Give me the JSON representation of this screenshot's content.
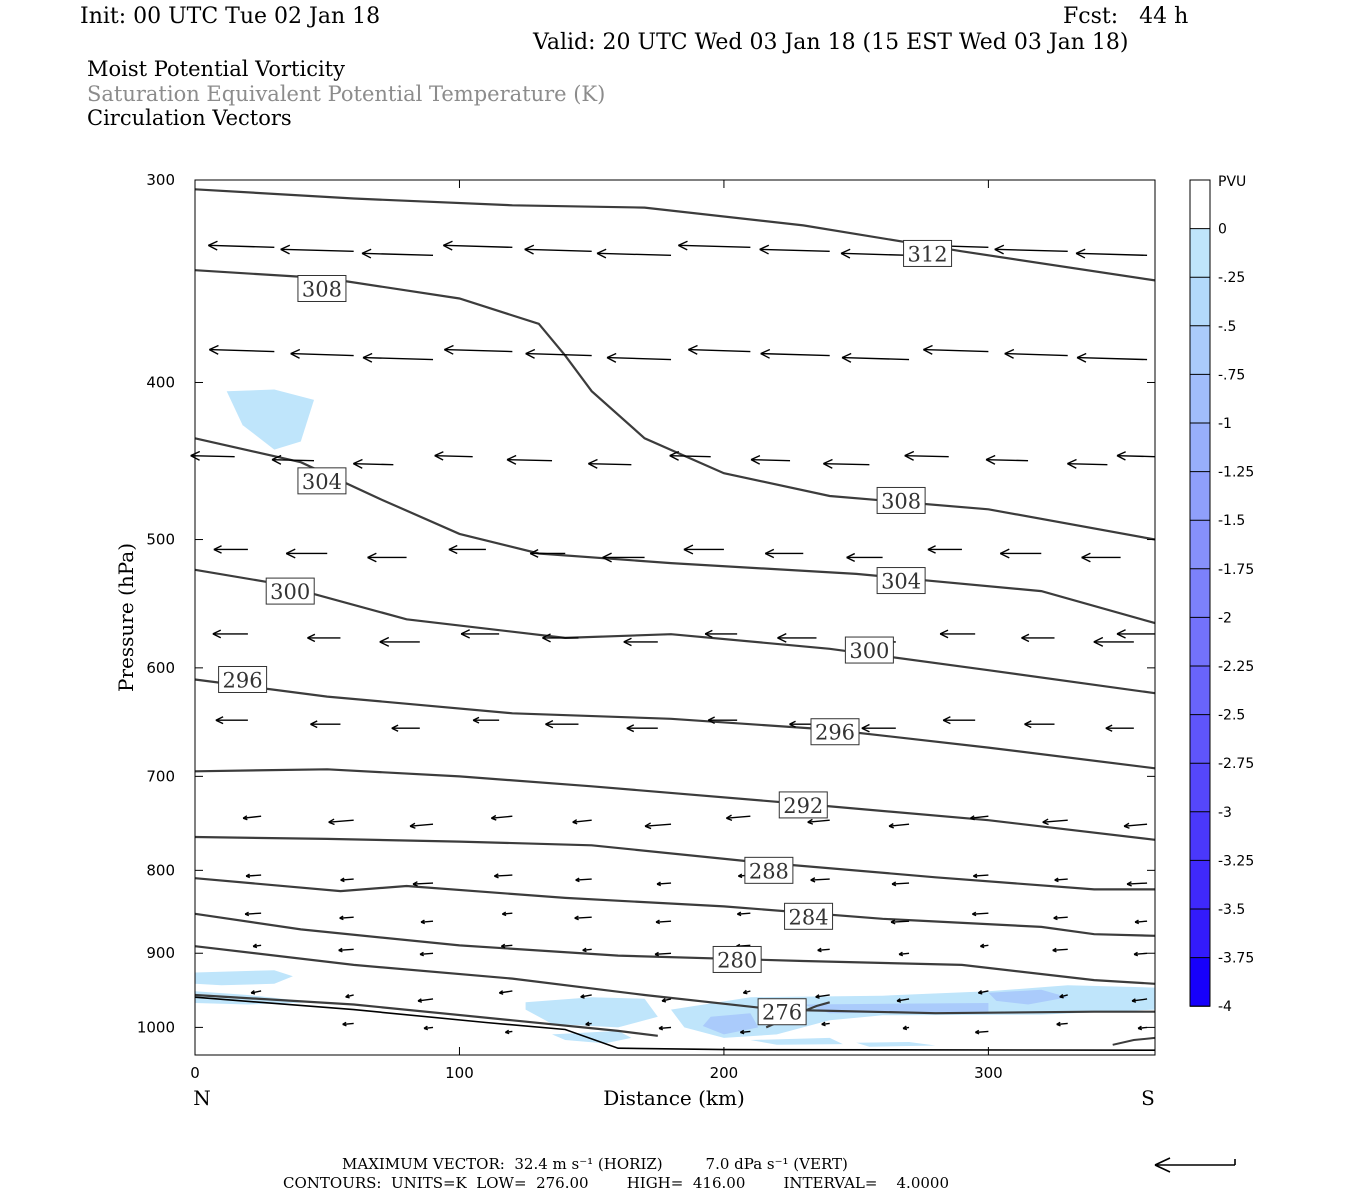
{
  "header": {
    "init": "Init: 00 UTC Tue 02 Jan 18",
    "fcst": "Fcst:   44 h",
    "valid": "Valid: 20 UTC Wed 03 Jan 18 (15 EST Wed 03 Jan 18)"
  },
  "titles": {
    "line1": "Moist Potential Vorticity",
    "line2": "Saturation Equivalent Potential Temperature (K)",
    "line3": "Circulation Vectors"
  },
  "footer": {
    "max_vector": "MAXIMUM VECTOR:  32.4 m s⁻¹ (HORIZ)         7.0 dPa s⁻¹ (VERT)",
    "contours": "CONTOURS:  UNITS=K  LOW=  276.00        HIGH=  416.00        INTERVAL=    4.0000"
  },
  "chart_data": {
    "type": "cross-section",
    "xlabel": "Distance (km)",
    "ylabel": "Pressure (hPa)",
    "xlim": [
      0,
      363
    ],
    "ylim": [
      1040,
      300
    ],
    "y_scale": "log-pressure",
    "x_ticks": [
      0,
      100,
      200,
      300
    ],
    "y_ticks": [
      300,
      400,
      500,
      600,
      700,
      800,
      900,
      1000
    ],
    "left_end_label": "N",
    "right_end_label": "S",
    "colorbar": {
      "unit": "PVU",
      "labels": [
        "0",
        "-.25",
        "-.5",
        "-.75",
        "-1",
        "-1.25",
        "-1.5",
        "-1.75",
        "-2",
        "-2.25",
        "-2.5",
        "-2.75",
        "-3",
        "-3.25",
        "-3.5",
        "-3.75",
        "-4"
      ],
      "colors": [
        "#ffffff",
        "#bfe5fb",
        "#b3d9fb",
        "#aacbfb",
        "#a1bdfb",
        "#98affb",
        "#8f9ffb",
        "#8690fb",
        "#7c81fb",
        "#7372fb",
        "#6964fb",
        "#5f55fb",
        "#5547fb",
        "#4a38fb",
        "#3f29fb",
        "#331bfb",
        "#1700fb"
      ]
    },
    "contours": [
      {
        "level": 312,
        "label": "312",
        "label_at": [
          277,
          333
        ],
        "points": [
          [
            0,
            304
          ],
          [
            60,
            308
          ],
          [
            120,
            311
          ],
          [
            170,
            312
          ],
          [
            230,
            320
          ],
          [
            290,
            332
          ],
          [
            363,
            346
          ]
        ]
      },
      {
        "level": 308,
        "label": "308",
        "label_at": [
          48,
          350
        ],
        "points": [
          [
            0,
            341
          ],
          [
            50,
            345
          ],
          [
            100,
            355
          ],
          [
            130,
            368
          ],
          [
            140,
            385
          ],
          [
            150,
            405
          ],
          [
            170,
            433
          ],
          [
            200,
            455
          ],
          [
            240,
            470
          ],
          [
            300,
            479
          ],
          [
            363,
            500
          ]
        ]
      },
      {
        "level": 308,
        "label": "308",
        "label_at": [
          267,
          473
        ],
        "points": []
      },
      {
        "level": 304,
        "label": "304",
        "label_at": [
          48,
          460
        ],
        "points": [
          [
            0,
            433
          ],
          [
            40,
            448
          ],
          [
            70,
            472
          ],
          [
            100,
            496
          ],
          [
            130,
            510
          ],
          [
            180,
            517
          ],
          [
            250,
            525
          ],
          [
            320,
            538
          ],
          [
            363,
            563
          ]
        ]
      },
      {
        "level": 304,
        "label": "304",
        "label_at": [
          267,
          530
        ],
        "points": []
      },
      {
        "level": 300,
        "label": "300",
        "label_at": [
          36,
          538
        ],
        "points": [
          [
            0,
            522
          ],
          [
            30,
            532
          ],
          [
            80,
            560
          ],
          [
            140,
            575
          ],
          [
            180,
            572
          ],
          [
            240,
            584
          ],
          [
            300,
            602
          ],
          [
            363,
            622
          ]
        ]
      },
      {
        "level": 300,
        "label": "300",
        "label_at": [
          255,
          585
        ],
        "points": []
      },
      {
        "level": 296,
        "label": "296",
        "label_at": [
          18,
          610
        ],
        "points": [
          [
            0,
            610
          ],
          [
            50,
            625
          ],
          [
            120,
            640
          ],
          [
            180,
            645
          ],
          [
            240,
            655
          ],
          [
            300,
            672
          ],
          [
            363,
            692
          ]
        ]
      },
      {
        "level": 296,
        "label": "296",
        "label_at": [
          242,
          657
        ],
        "points": []
      },
      {
        "level": 292,
        "label": "292",
        "label_at": [
          230,
          729
        ],
        "points": [
          [
            0,
            695
          ],
          [
            50,
            693
          ],
          [
            100,
            700
          ],
          [
            150,
            710
          ],
          [
            230,
            728
          ],
          [
            300,
            745
          ],
          [
            363,
            766
          ]
        ]
      },
      {
        "level": 288,
        "label": "288",
        "label_at": [
          217,
          800
        ],
        "points": [
          [
            0,
            763
          ],
          [
            50,
            765
          ],
          [
            100,
            768
          ],
          [
            150,
            772
          ],
          [
            210,
            790
          ],
          [
            280,
            808
          ],
          [
            340,
            822
          ],
          [
            363,
            822
          ]
        ]
      },
      {
        "level": 284,
        "label": "284",
        "label_at": [
          232,
          854
        ],
        "points": [
          [
            0,
            809
          ],
          [
            55,
            824
          ],
          [
            80,
            818
          ],
          [
            140,
            832
          ],
          [
            200,
            842
          ],
          [
            260,
            857
          ],
          [
            320,
            867
          ],
          [
            340,
            876
          ],
          [
            363,
            878
          ]
        ]
      },
      {
        "level": 280,
        "label": "280",
        "label_at": [
          205,
          908
        ],
        "points": [
          [
            0,
            851
          ],
          [
            40,
            870
          ],
          [
            100,
            890
          ],
          [
            160,
            903
          ],
          [
            230,
            910
          ],
          [
            290,
            915
          ],
          [
            340,
            935
          ],
          [
            363,
            940
          ]
        ]
      },
      {
        "level": 276,
        "label": "276",
        "label_at": [
          222,
          978
        ],
        "points": [
          [
            0,
            891
          ],
          [
            60,
            915
          ],
          [
            120,
            933
          ],
          [
            170,
            955
          ],
          [
            220,
            975
          ],
          [
            280,
            980
          ],
          [
            340,
            978
          ],
          [
            363,
            978
          ]
        ]
      },
      {
        "level": 276,
        "label": "",
        "label_at": [
          0,
          0
        ],
        "points": [
          [
            0,
            955
          ],
          [
            60,
            968
          ],
          [
            120,
            990
          ],
          [
            160,
            1005
          ],
          [
            175,
            1012
          ]
        ]
      },
      {
        "level": 276,
        "label": "",
        "label_at": [
          0,
          0
        ],
        "points": [
          [
            216,
            1000
          ],
          [
            225,
            985
          ],
          [
            235,
            970
          ],
          [
            240,
            965
          ]
        ]
      }
    ],
    "ground": [
      [
        0,
        958
      ],
      [
        60,
        975
      ],
      [
        110,
        993
      ],
      [
        140,
        1003
      ],
      [
        160,
        1030
      ],
      [
        200,
        1032
      ],
      [
        363,
        1033
      ]
    ],
    "vectors": {
      "levels_hpa": [
        330,
        345,
        380,
        405,
        445,
        460,
        505,
        525,
        575,
        610,
        655,
        680,
        735,
        775,
        800,
        825,
        850,
        885,
        890,
        905,
        935,
        950,
        965,
        990,
        1010,
        1030
      ],
      "columns_km": [
        10,
        40,
        70,
        100,
        130,
        160,
        190,
        220,
        250,
        280,
        310,
        340,
        360
      ],
      "samples": [
        {
          "x": 30,
          "p": 330,
          "u": -26,
          "w": 0
        },
        {
          "x": 60,
          "p": 345,
          "u": -25,
          "w": 0.5
        },
        {
          "x": 90,
          "p": 345,
          "u": -27,
          "w": 1
        },
        {
          "x": 120,
          "p": 345,
          "u": -28,
          "w": 1
        },
        {
          "x": 150,
          "p": 345,
          "u": -28,
          "w": 0.5
        },
        {
          "x": 180,
          "p": 345,
          "u": -30,
          "w": 0
        },
        {
          "x": 210,
          "p": 348,
          "u": -31,
          "w": 0
        },
        {
          "x": 240,
          "p": 348,
          "u": -32,
          "w": 0
        },
        {
          "x": 270,
          "p": 348,
          "u": -32,
          "w": 0
        },
        {
          "x": 300,
          "p": 350,
          "u": -31,
          "w": 0
        },
        {
          "x": 330,
          "p": 350,
          "u": -31,
          "w": 0
        },
        {
          "x": 360,
          "p": 348,
          "u": -30,
          "w": 0
        }
      ]
    }
  }
}
